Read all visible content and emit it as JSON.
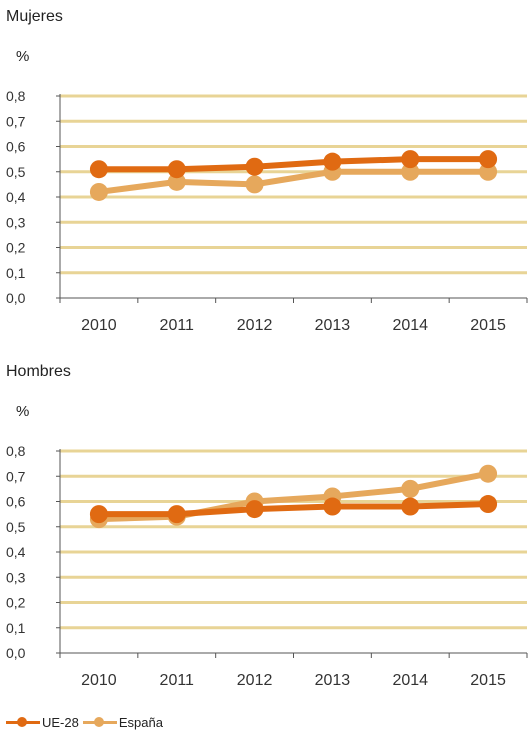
{
  "colors": {
    "ue28": "#e06a12",
    "espana": "#e6a85c",
    "grid": "#e8d496",
    "axis": "#555555"
  },
  "legend": [
    {
      "label": "UE-28",
      "color": "#e06a12"
    },
    {
      "label": "España",
      "color": "#e6a85c"
    }
  ],
  "chart_data": [
    {
      "type": "line",
      "title": "Mujeres",
      "ylabel": "%",
      "categories": [
        "2010",
        "2011",
        "2012",
        "2013",
        "2014",
        "2015"
      ],
      "yticks": [
        "0,0",
        "0,1",
        "0,2",
        "0,3",
        "0,4",
        "0,5",
        "0,6",
        "0,7",
        "0,8"
      ],
      "ylim": [
        0,
        0.8
      ],
      "grid": true,
      "series": [
        {
          "name": "UE-28",
          "values": [
            0.51,
            0.51,
            0.52,
            0.54,
            0.55,
            0.55
          ]
        },
        {
          "name": "España",
          "values": [
            0.42,
            0.46,
            0.45,
            0.5,
            0.5,
            0.5
          ]
        }
      ]
    },
    {
      "type": "line",
      "title": "Hombres",
      "ylabel": "%",
      "categories": [
        "2010",
        "2011",
        "2012",
        "2013",
        "2014",
        "2015"
      ],
      "yticks": [
        "0,0",
        "0,1",
        "0,2",
        "0,3",
        "0,4",
        "0,5",
        "0,6",
        "0,7",
        "0,8"
      ],
      "ylim": [
        0,
        0.8
      ],
      "grid": true,
      "series": [
        {
          "name": "UE-28",
          "values": [
            0.55,
            0.55,
            0.57,
            0.58,
            0.58,
            0.59
          ]
        },
        {
          "name": "España",
          "values": [
            0.53,
            0.54,
            0.6,
            0.62,
            0.65,
            0.71
          ]
        }
      ]
    }
  ]
}
